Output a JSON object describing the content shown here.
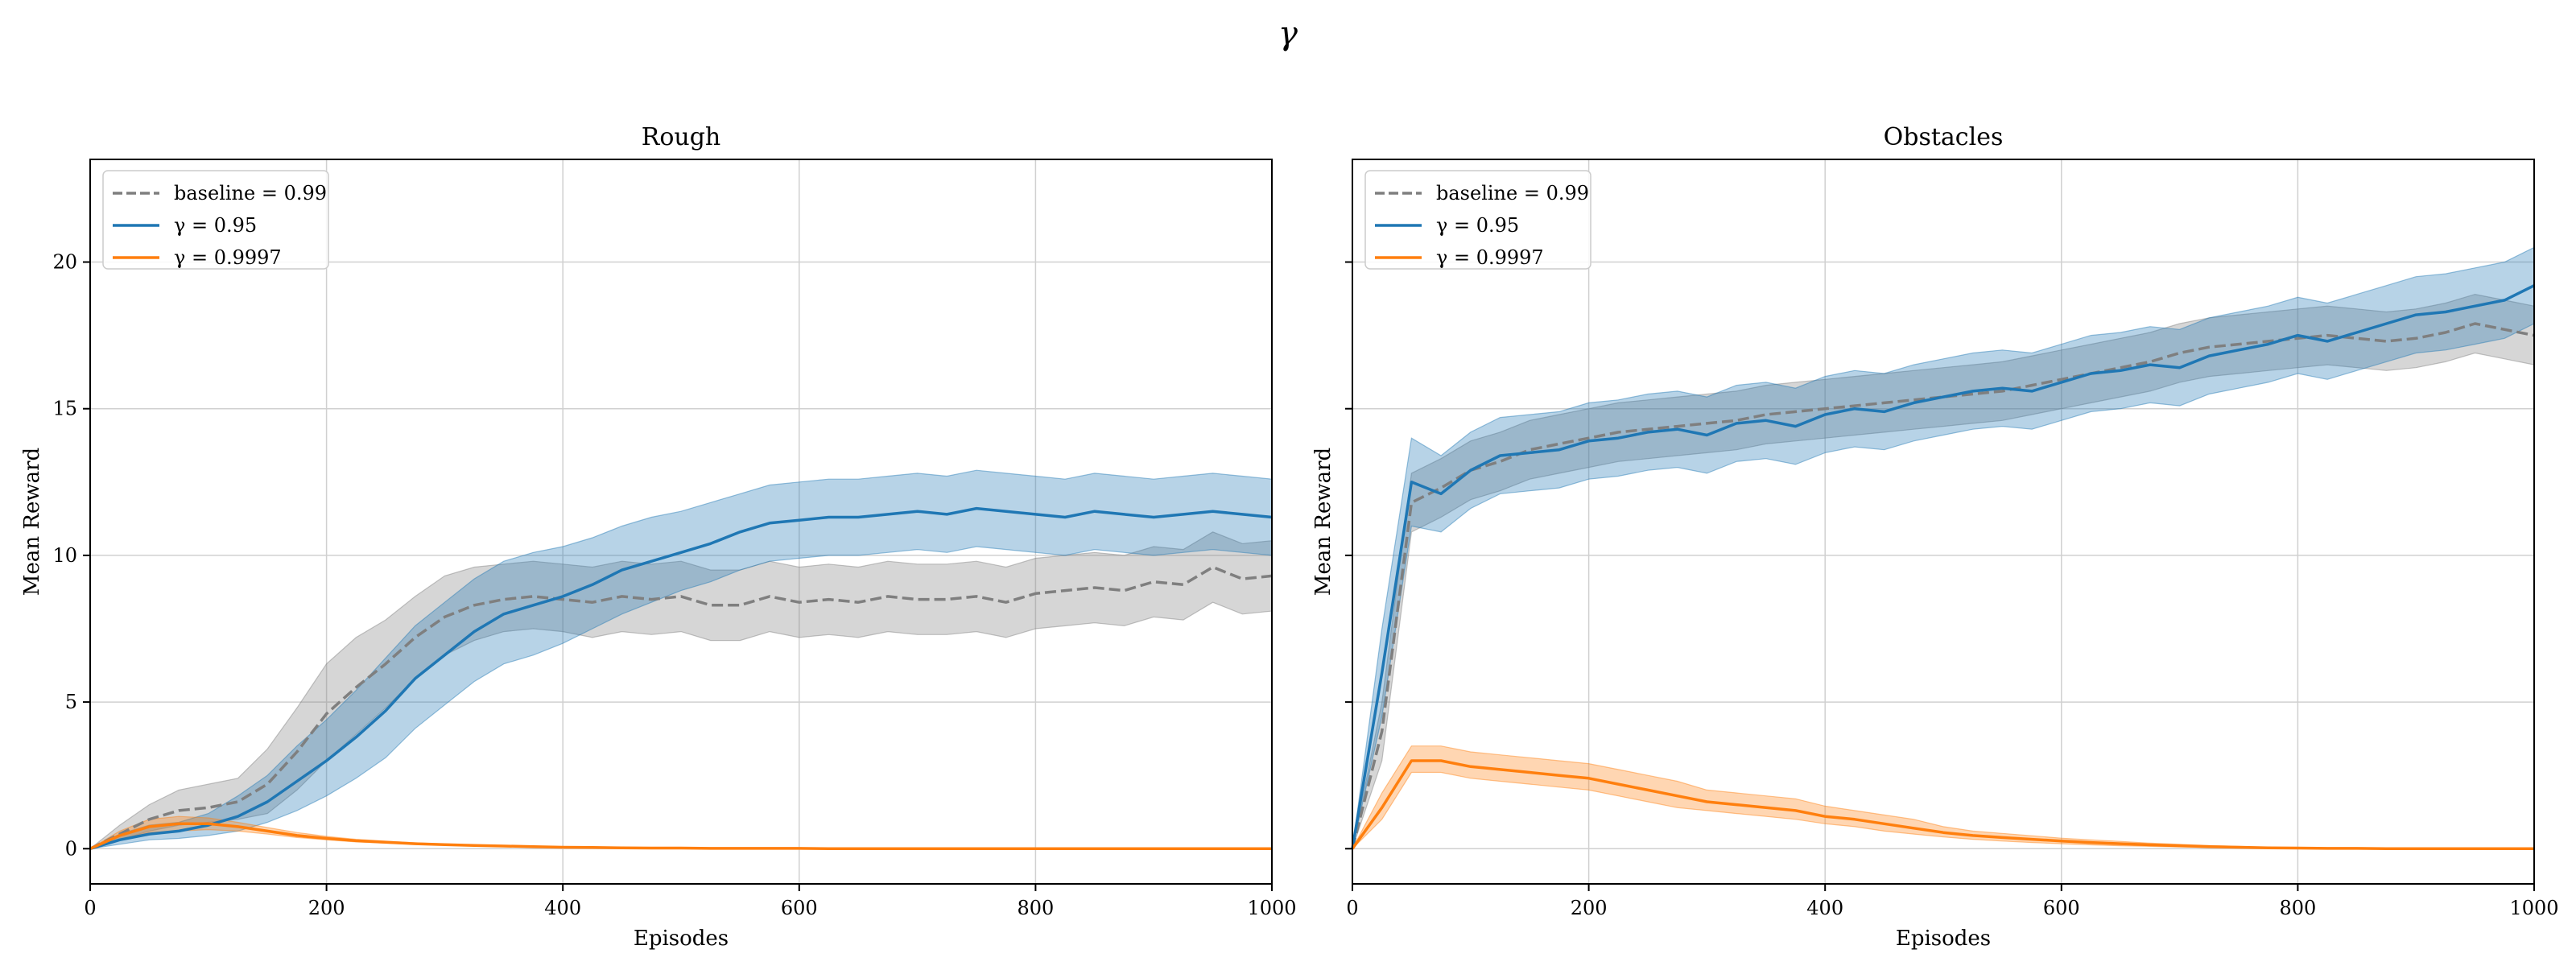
{
  "figure": {
    "title": "γ"
  },
  "chart_data": [
    {
      "type": "line",
      "title": "Rough",
      "xlabel": "Episodes",
      "ylabel": "Mean Reward",
      "xlim": [
        0,
        1000
      ],
      "ylim": [
        -1.2,
        23.5
      ],
      "xticks": [
        0,
        200,
        400,
        600,
        800,
        1000
      ],
      "yticks": [
        0,
        5,
        10,
        15,
        20
      ],
      "grid": true,
      "legend_position": "top-left",
      "series": [
        {
          "name": "baseline = 0.99",
          "color": "#7f7f7f",
          "dash": true,
          "x": [
            0,
            25,
            50,
            75,
            100,
            125,
            150,
            175,
            200,
            225,
            250,
            275,
            300,
            325,
            350,
            375,
            400,
            425,
            450,
            475,
            500,
            525,
            550,
            575,
            600,
            625,
            650,
            675,
            700,
            725,
            750,
            775,
            800,
            825,
            850,
            875,
            900,
            925,
            950,
            975,
            1000
          ],
          "mean": [
            0,
            0.5,
            1.0,
            1.3,
            1.4,
            1.6,
            2.2,
            3.3,
            4.6,
            5.5,
            6.3,
            7.2,
            7.9,
            8.3,
            8.5,
            8.6,
            8.5,
            8.4,
            8.6,
            8.5,
            8.6,
            8.3,
            8.3,
            8.6,
            8.4,
            8.5,
            8.4,
            8.6,
            8.5,
            8.5,
            8.6,
            8.4,
            8.7,
            8.8,
            8.9,
            8.8,
            9.1,
            9.0,
            9.6,
            9.2,
            9.3
          ],
          "lower": [
            0,
            0.3,
            0.6,
            0.8,
            0.9,
            1.0,
            1.2,
            2.0,
            3.0,
            3.9,
            4.8,
            5.8,
            6.6,
            7.1,
            7.4,
            7.5,
            7.4,
            7.2,
            7.4,
            7.3,
            7.4,
            7.1,
            7.1,
            7.4,
            7.2,
            7.3,
            7.2,
            7.4,
            7.3,
            7.3,
            7.4,
            7.2,
            7.5,
            7.6,
            7.7,
            7.6,
            7.9,
            7.8,
            8.4,
            8.0,
            8.1
          ],
          "upper": [
            0,
            0.8,
            1.5,
            2.0,
            2.2,
            2.4,
            3.4,
            4.8,
            6.3,
            7.2,
            7.8,
            8.6,
            9.3,
            9.6,
            9.7,
            9.8,
            9.7,
            9.6,
            9.8,
            9.7,
            9.8,
            9.5,
            9.5,
            9.8,
            9.6,
            9.7,
            9.6,
            9.8,
            9.7,
            9.7,
            9.8,
            9.6,
            9.9,
            10.0,
            10.1,
            10.0,
            10.3,
            10.2,
            10.8,
            10.4,
            10.5
          ]
        },
        {
          "name": "γ = 0.95",
          "color": "#1f77b4",
          "dash": false,
          "x": [
            0,
            25,
            50,
            75,
            100,
            125,
            150,
            175,
            200,
            225,
            250,
            275,
            300,
            325,
            350,
            375,
            400,
            425,
            450,
            475,
            500,
            525,
            550,
            575,
            600,
            625,
            650,
            675,
            700,
            725,
            750,
            775,
            800,
            825,
            850,
            875,
            900,
            925,
            950,
            975,
            1000
          ],
          "mean": [
            0,
            0.3,
            0.5,
            0.6,
            0.8,
            1.1,
            1.6,
            2.3,
            3.0,
            3.8,
            4.7,
            5.8,
            6.6,
            7.4,
            8.0,
            8.3,
            8.6,
            9.0,
            9.5,
            9.8,
            10.1,
            10.4,
            10.8,
            11.1,
            11.2,
            11.3,
            11.3,
            11.4,
            11.5,
            11.4,
            11.6,
            11.5,
            11.4,
            11.3,
            11.5,
            11.4,
            11.3,
            11.4,
            11.5,
            11.4,
            11.3
          ],
          "lower": [
            0,
            0.15,
            0.3,
            0.35,
            0.45,
            0.6,
            0.9,
            1.3,
            1.8,
            2.4,
            3.1,
            4.1,
            4.9,
            5.7,
            6.3,
            6.6,
            7.0,
            7.5,
            8.0,
            8.4,
            8.8,
            9.1,
            9.5,
            9.8,
            9.9,
            10.0,
            10.0,
            10.1,
            10.2,
            10.1,
            10.3,
            10.2,
            10.1,
            10.0,
            10.2,
            10.1,
            10.0,
            10.1,
            10.2,
            10.1,
            10.0
          ],
          "upper": [
            0,
            0.5,
            0.8,
            0.9,
            1.2,
            1.8,
            2.5,
            3.5,
            4.4,
            5.4,
            6.5,
            7.6,
            8.4,
            9.2,
            9.8,
            10.1,
            10.3,
            10.6,
            11.0,
            11.3,
            11.5,
            11.8,
            12.1,
            12.4,
            12.5,
            12.6,
            12.6,
            12.7,
            12.8,
            12.7,
            12.9,
            12.8,
            12.7,
            12.6,
            12.8,
            12.7,
            12.6,
            12.7,
            12.8,
            12.7,
            12.6
          ]
        },
        {
          "name": "γ = 0.9997",
          "color": "#ff7f0e",
          "dash": false,
          "x": [
            0,
            25,
            50,
            75,
            100,
            125,
            150,
            175,
            200,
            225,
            250,
            275,
            300,
            325,
            350,
            375,
            400,
            425,
            450,
            475,
            500,
            525,
            550,
            575,
            600,
            625,
            650,
            675,
            700,
            725,
            750,
            775,
            800,
            825,
            850,
            875,
            900,
            925,
            950,
            975,
            1000
          ],
          "mean": [
            0,
            0.45,
            0.75,
            0.85,
            0.85,
            0.75,
            0.6,
            0.45,
            0.35,
            0.27,
            0.22,
            0.17,
            0.14,
            0.11,
            0.09,
            0.07,
            0.05,
            0.04,
            0.03,
            0.02,
            0.02,
            0.01,
            0.01,
            0.01,
            0.01,
            0,
            0,
            0,
            0,
            0,
            0,
            0,
            0,
            0,
            0,
            0,
            0,
            0,
            0,
            0,
            0
          ],
          "lower": [
            0,
            0.3,
            0.55,
            0.6,
            0.65,
            0.6,
            0.5,
            0.38,
            0.3,
            0.23,
            0.19,
            0.15,
            0.12,
            0.1,
            0.08,
            0.06,
            0.04,
            0.03,
            0.02,
            0.02,
            0.01,
            0.01,
            0.01,
            0,
            0,
            0,
            0,
            0,
            0,
            0,
            0,
            0,
            0,
            0,
            0,
            0,
            0,
            0,
            0,
            0,
            0
          ],
          "upper": [
            0,
            0.6,
            1.0,
            1.1,
            1.05,
            0.9,
            0.72,
            0.55,
            0.42,
            0.32,
            0.26,
            0.2,
            0.16,
            0.13,
            0.1,
            0.08,
            0.06,
            0.05,
            0.04,
            0.03,
            0.03,
            0.02,
            0.02,
            0.01,
            0.01,
            0.01,
            0,
            0,
            0,
            0,
            0,
            0,
            0,
            0,
            0,
            0,
            0,
            0,
            0,
            0,
            0
          ]
        }
      ]
    },
    {
      "type": "line",
      "title": "Obstacles",
      "xlabel": "Episodes",
      "ylabel": "Mean Reward",
      "xlim": [
        0,
        1000
      ],
      "ylim": [
        -1.2,
        23.5
      ],
      "xticks": [
        0,
        200,
        400,
        600,
        800,
        1000
      ],
      "yticks": [
        0,
        5,
        10,
        15,
        20
      ],
      "grid": true,
      "legend_position": "top-left",
      "series": [
        {
          "name": "baseline = 0.99",
          "color": "#7f7f7f",
          "dash": true,
          "x": [
            0,
            25,
            50,
            75,
            100,
            125,
            150,
            175,
            200,
            225,
            250,
            275,
            300,
            325,
            350,
            375,
            400,
            425,
            450,
            475,
            500,
            525,
            550,
            575,
            600,
            625,
            650,
            675,
            700,
            725,
            750,
            775,
            800,
            825,
            850,
            875,
            900,
            925,
            950,
            975,
            1000
          ],
          "mean": [
            0,
            4.0,
            11.8,
            12.3,
            12.9,
            13.2,
            13.6,
            13.8,
            14.0,
            14.2,
            14.3,
            14.4,
            14.5,
            14.6,
            14.8,
            14.9,
            15.0,
            15.1,
            15.2,
            15.3,
            15.4,
            15.5,
            15.6,
            15.8,
            16.0,
            16.2,
            16.4,
            16.6,
            16.9,
            17.1,
            17.2,
            17.3,
            17.4,
            17.5,
            17.4,
            17.3,
            17.4,
            17.6,
            17.9,
            17.7,
            17.5
          ],
          "lower": [
            0,
            3.0,
            10.8,
            11.3,
            11.9,
            12.2,
            12.6,
            12.8,
            13.0,
            13.2,
            13.3,
            13.4,
            13.5,
            13.6,
            13.8,
            13.9,
            14.0,
            14.1,
            14.2,
            14.3,
            14.4,
            14.5,
            14.6,
            14.8,
            15.0,
            15.2,
            15.4,
            15.6,
            15.9,
            16.1,
            16.2,
            16.3,
            16.4,
            16.5,
            16.4,
            16.3,
            16.4,
            16.6,
            16.9,
            16.7,
            16.5
          ],
          "upper": [
            0,
            5.0,
            12.8,
            13.3,
            13.9,
            14.2,
            14.6,
            14.8,
            15.0,
            15.2,
            15.3,
            15.4,
            15.5,
            15.6,
            15.8,
            15.9,
            16.0,
            16.1,
            16.2,
            16.3,
            16.4,
            16.5,
            16.6,
            16.8,
            17.0,
            17.2,
            17.4,
            17.6,
            17.9,
            18.1,
            18.2,
            18.3,
            18.4,
            18.5,
            18.4,
            18.3,
            18.4,
            18.6,
            18.9,
            18.7,
            18.5
          ]
        },
        {
          "name": "γ = 0.95",
          "color": "#1f77b4",
          "dash": false,
          "x": [
            0,
            25,
            50,
            75,
            100,
            125,
            150,
            175,
            200,
            225,
            250,
            275,
            300,
            325,
            350,
            375,
            400,
            425,
            450,
            475,
            500,
            525,
            550,
            575,
            600,
            625,
            650,
            675,
            700,
            725,
            750,
            775,
            800,
            825,
            850,
            875,
            900,
            925,
            950,
            975,
            1000
          ],
          "mean": [
            0,
            6.0,
            12.5,
            12.1,
            12.9,
            13.4,
            13.5,
            13.6,
            13.9,
            14.0,
            14.2,
            14.3,
            14.1,
            14.5,
            14.6,
            14.4,
            14.8,
            15.0,
            14.9,
            15.2,
            15.4,
            15.6,
            15.7,
            15.6,
            15.9,
            16.2,
            16.3,
            16.5,
            16.4,
            16.8,
            17.0,
            17.2,
            17.5,
            17.3,
            17.6,
            17.9,
            18.2,
            18.3,
            18.5,
            18.7,
            19.2
          ],
          "lower": [
            0,
            4.5,
            11.0,
            10.8,
            11.6,
            12.1,
            12.2,
            12.3,
            12.6,
            12.7,
            12.9,
            13.0,
            12.8,
            13.2,
            13.3,
            13.1,
            13.5,
            13.7,
            13.6,
            13.9,
            14.1,
            14.3,
            14.4,
            14.3,
            14.6,
            14.9,
            15.0,
            15.2,
            15.1,
            15.5,
            15.7,
            15.9,
            16.2,
            16.0,
            16.3,
            16.6,
            16.9,
            17.0,
            17.2,
            17.4,
            17.9
          ],
          "upper": [
            0,
            7.5,
            14.0,
            13.4,
            14.2,
            14.7,
            14.8,
            14.9,
            15.2,
            15.3,
            15.5,
            15.6,
            15.4,
            15.8,
            15.9,
            15.7,
            16.1,
            16.3,
            16.2,
            16.5,
            16.7,
            16.9,
            17.0,
            16.9,
            17.2,
            17.5,
            17.6,
            17.8,
            17.7,
            18.1,
            18.3,
            18.5,
            18.8,
            18.6,
            18.9,
            19.2,
            19.5,
            19.6,
            19.8,
            20.0,
            20.5
          ]
        },
        {
          "name": "γ = 0.9997",
          "color": "#ff7f0e",
          "dash": false,
          "x": [
            0,
            25,
            50,
            75,
            100,
            125,
            150,
            175,
            200,
            225,
            250,
            275,
            300,
            325,
            350,
            375,
            400,
            425,
            450,
            475,
            500,
            525,
            550,
            575,
            600,
            625,
            650,
            675,
            700,
            725,
            750,
            775,
            800,
            825,
            850,
            875,
            900,
            925,
            950,
            975,
            1000
          ],
          "mean": [
            0,
            1.4,
            3.0,
            3.0,
            2.8,
            2.7,
            2.6,
            2.5,
            2.4,
            2.2,
            2.0,
            1.8,
            1.6,
            1.5,
            1.4,
            1.3,
            1.1,
            1.0,
            0.85,
            0.7,
            0.55,
            0.45,
            0.38,
            0.32,
            0.26,
            0.21,
            0.17,
            0.13,
            0.1,
            0.07,
            0.05,
            0.03,
            0.02,
            0.01,
            0.01,
            0,
            0,
            0,
            0,
            0,
            0
          ],
          "lower": [
            0,
            1.0,
            2.6,
            2.6,
            2.4,
            2.3,
            2.2,
            2.1,
            2.0,
            1.8,
            1.6,
            1.4,
            1.3,
            1.2,
            1.1,
            1.0,
            0.85,
            0.75,
            0.6,
            0.5,
            0.4,
            0.32,
            0.26,
            0.21,
            0.17,
            0.13,
            0.1,
            0.08,
            0.06,
            0.04,
            0.03,
            0.02,
            0.01,
            0.01,
            0,
            0,
            0,
            0,
            0,
            0,
            0
          ],
          "upper": [
            0,
            1.9,
            3.5,
            3.5,
            3.3,
            3.2,
            3.1,
            3.0,
            2.9,
            2.7,
            2.5,
            2.3,
            2.0,
            1.9,
            1.8,
            1.7,
            1.45,
            1.3,
            1.15,
            1.0,
            0.75,
            0.6,
            0.52,
            0.44,
            0.36,
            0.3,
            0.25,
            0.19,
            0.15,
            0.11,
            0.08,
            0.05,
            0.03,
            0.02,
            0.02,
            0.01,
            0,
            0,
            0,
            0,
            0
          ]
        }
      ]
    }
  ]
}
